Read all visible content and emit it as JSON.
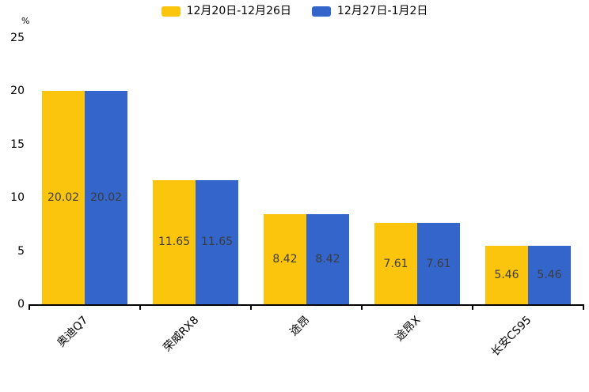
{
  "chart_data": {
    "type": "bar",
    "title": "",
    "ylabel": "%",
    "xlabel": "",
    "categories": [
      "奥迪Q7",
      "荣威RX8",
      "途昂",
      "途昂X",
      "长安CS95"
    ],
    "series": [
      {
        "name": "12月20日-12月26日",
        "color": "#FBC50D",
        "values": [
          20.02,
          11.65,
          8.42,
          7.61,
          5.46
        ]
      },
      {
        "name": "12月27日-1月2日",
        "color": "#3365CB",
        "values": [
          20.02,
          11.65,
          8.42,
          7.61,
          5.46
        ]
      }
    ],
    "ylim": [
      0,
      25
    ],
    "yticks": [
      0,
      5,
      10,
      15,
      20,
      25
    ],
    "grid": false,
    "legend_position": "top",
    "bar_labels_visible": true,
    "bar_label_color": "#3c3c3c",
    "axis_color": "#000000"
  }
}
